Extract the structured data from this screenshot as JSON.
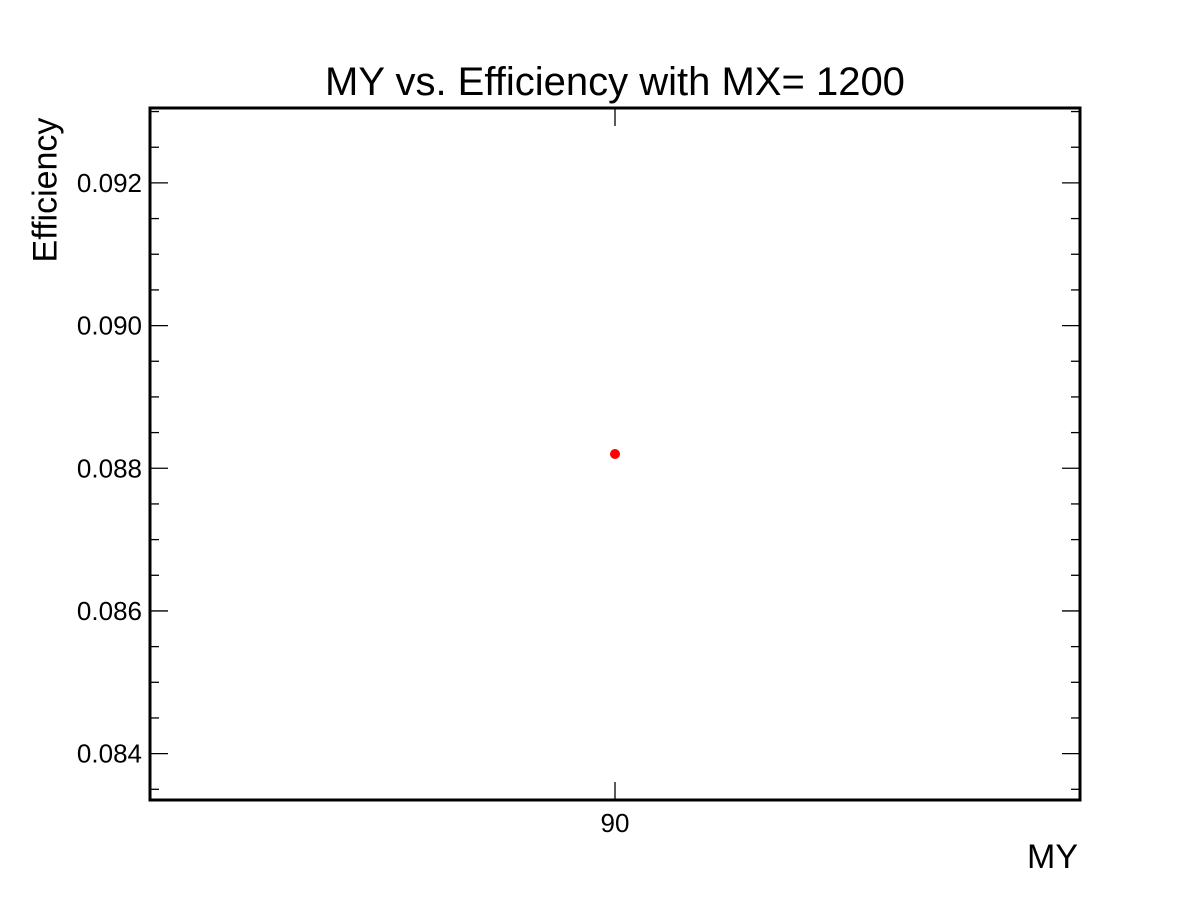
{
  "chart_data": {
    "type": "scatter",
    "title": "MY vs. Efficiency with MX= 1200",
    "xlabel": "MY",
    "ylabel": "Efficiency",
    "xlim": [
      80,
      100
    ],
    "ylim": [
      0.08335,
      0.09305
    ],
    "x_ticks": [
      90
    ],
    "x_tick_labels": [
      "90"
    ],
    "y_ticks": [
      0.084,
      0.086,
      0.088,
      0.09,
      0.092
    ],
    "y_tick_labels": [
      "0.084",
      "0.086",
      "0.088",
      "0.090",
      "0.092"
    ],
    "y_minor_step": 0.0005,
    "grid": false,
    "marker_color": "#ff0000",
    "series": [
      {
        "x": [
          90
        ],
        "y": [
          0.0882
        ]
      }
    ]
  }
}
